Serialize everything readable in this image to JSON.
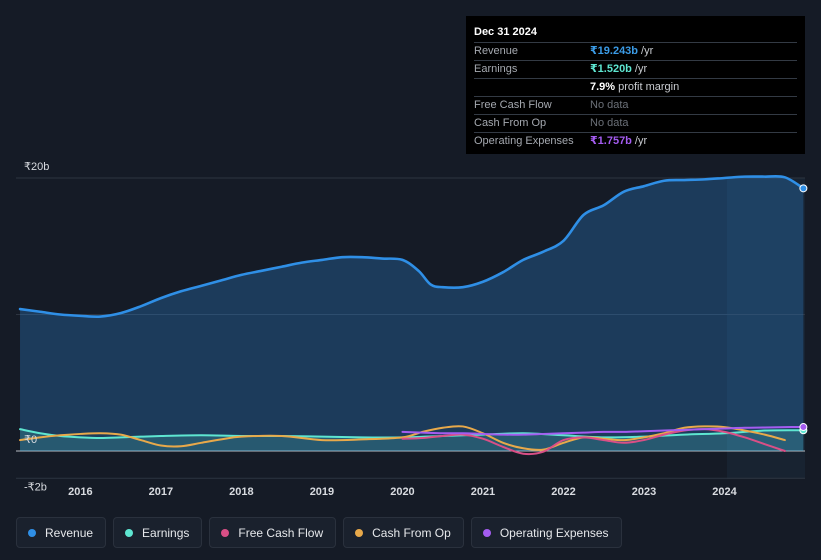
{
  "tooltip": {
    "date": "Dec 31 2024",
    "rows": [
      {
        "label": "Revenue",
        "value": "₹19.243b",
        "unit": "/yr",
        "color": "#3b9be6"
      },
      {
        "label": "Earnings",
        "value": "₹1.520b",
        "unit": "/yr",
        "color": "#5ee6d1"
      },
      {
        "label": "",
        "value": "7.9%",
        "unit": "profit margin",
        "color": "#ffffff"
      },
      {
        "label": "Free Cash Flow",
        "value": "No data",
        "unit": "",
        "color": "#6b7078"
      },
      {
        "label": "Cash From Op",
        "value": "No data",
        "unit": "",
        "color": "#6b7078"
      },
      {
        "label": "Operating Expenses",
        "value": "₹1.757b",
        "unit": "/yr",
        "color": "#a45cf0"
      }
    ]
  },
  "legend": [
    {
      "label": "Revenue",
      "color": "#2f8fe6"
    },
    {
      "label": "Earnings",
      "color": "#5ee6d1"
    },
    {
      "label": "Free Cash Flow",
      "color": "#d94f86"
    },
    {
      "label": "Cash From Op",
      "color": "#e8a94a"
    },
    {
      "label": "Operating Expenses",
      "color": "#a45cf0"
    }
  ],
  "chart_data": {
    "type": "line",
    "title": "",
    "xlabel": "",
    "ylabel": "",
    "y_tick_labels": [
      {
        "value": 20,
        "label": "₹20b"
      },
      {
        "value": 0,
        "label": "₹0"
      },
      {
        "value": -2,
        "label": "-₹2b"
      }
    ],
    "ylim": [
      -2,
      20
    ],
    "xlim": [
      2015.2,
      2025.0
    ],
    "x_ticks": [
      2016,
      2017,
      2018,
      2019,
      2020,
      2021,
      2022,
      2023,
      2024
    ],
    "forecast_start": 2024.0,
    "series": [
      {
        "name": "Revenue",
        "color": "#2f8fe6",
        "area": true,
        "x": [
          2015.25,
          2015.5,
          2015.75,
          2016.0,
          2016.25,
          2016.5,
          2016.75,
          2017.0,
          2017.25,
          2017.5,
          2017.75,
          2018.0,
          2018.25,
          2018.5,
          2018.75,
          2019.0,
          2019.25,
          2019.5,
          2019.75,
          2020.0,
          2020.2,
          2020.35,
          2020.5,
          2020.75,
          2021.0,
          2021.25,
          2021.5,
          2021.75,
          2022.0,
          2022.25,
          2022.5,
          2022.75,
          2023.0,
          2023.25,
          2023.5,
          2023.75,
          2024.0,
          2024.25,
          2024.5,
          2024.75,
          2024.98
        ],
        "values": [
          10.4,
          10.2,
          10.0,
          9.9,
          9.85,
          10.1,
          10.6,
          11.2,
          11.7,
          12.1,
          12.5,
          12.9,
          13.2,
          13.5,
          13.8,
          14.0,
          14.2,
          14.2,
          14.1,
          14.0,
          13.2,
          12.2,
          12.0,
          12.0,
          12.4,
          13.1,
          14.0,
          14.6,
          15.4,
          17.3,
          18.0,
          19.0,
          19.4,
          19.8,
          19.85,
          19.9,
          20.0,
          20.1,
          20.1,
          20.05,
          19.243
        ]
      },
      {
        "name": "Earnings",
        "color": "#5ee6d1",
        "area": true,
        "x": [
          2015.25,
          2015.5,
          2015.75,
          2016.0,
          2016.25,
          2016.5,
          2016.75,
          2017.0,
          2017.5,
          2018.0,
          2018.5,
          2019.0,
          2019.5,
          2020.0,
          2020.5,
          2021.0,
          2021.5,
          2022.0,
          2022.5,
          2023.0,
          2023.5,
          2024.0,
          2024.5,
          2024.98
        ],
        "values": [
          1.6,
          1.3,
          1.1,
          1.0,
          0.95,
          1.0,
          1.05,
          1.1,
          1.15,
          1.1,
          1.1,
          1.05,
          1.0,
          1.0,
          1.1,
          1.2,
          1.3,
          1.15,
          1.0,
          1.05,
          1.2,
          1.3,
          1.5,
          1.52
        ]
      },
      {
        "name": "Free Cash Flow",
        "color": "#d94f86",
        "area": false,
        "x": [
          2020.0,
          2020.25,
          2020.5,
          2020.75,
          2021.0,
          2021.25,
          2021.5,
          2021.75,
          2022.0,
          2022.25,
          2022.5,
          2022.75,
          2023.0,
          2023.25,
          2023.5,
          2023.75,
          2024.0,
          2024.25,
          2024.5,
          2024.75
        ],
        "values": [
          0.9,
          0.95,
          1.1,
          1.2,
          0.9,
          0.3,
          -0.2,
          -0.05,
          0.8,
          1.0,
          0.8,
          0.6,
          0.8,
          1.2,
          1.5,
          1.6,
          1.4,
          1.0,
          0.5,
          0.0
        ]
      },
      {
        "name": "Cash From Op",
        "color": "#e8a94a",
        "area": false,
        "x": [
          2015.25,
          2015.5,
          2015.75,
          2016.0,
          2016.25,
          2016.5,
          2016.75,
          2017.0,
          2017.25,
          2017.5,
          2017.75,
          2018.0,
          2018.5,
          2019.0,
          2019.5,
          2020.0,
          2020.25,
          2020.5,
          2020.75,
          2021.0,
          2021.25,
          2021.5,
          2021.75,
          2022.0,
          2022.25,
          2022.5,
          2022.75,
          2023.0,
          2023.25,
          2023.5,
          2023.75,
          2024.0,
          2024.25,
          2024.5,
          2024.75
        ],
        "values": [
          0.8,
          1.0,
          1.15,
          1.25,
          1.3,
          1.2,
          0.8,
          0.4,
          0.35,
          0.6,
          0.85,
          1.05,
          1.1,
          0.8,
          0.85,
          1.0,
          1.4,
          1.7,
          1.8,
          1.3,
          0.6,
          0.2,
          0.1,
          0.6,
          1.0,
          0.9,
          0.8,
          1.0,
          1.3,
          1.7,
          1.8,
          1.75,
          1.5,
          1.2,
          0.8
        ]
      },
      {
        "name": "Operating Expenses",
        "color": "#a45cf0",
        "area": false,
        "x": [
          2020.0,
          2020.25,
          2020.5,
          2020.75,
          2021.0,
          2021.25,
          2021.5,
          2021.75,
          2022.0,
          2022.25,
          2022.5,
          2022.75,
          2023.0,
          2023.25,
          2023.5,
          2023.75,
          2024.0,
          2024.25,
          2024.5,
          2024.75,
          2024.98
        ],
        "values": [
          1.4,
          1.35,
          1.3,
          1.3,
          1.25,
          1.2,
          1.2,
          1.25,
          1.3,
          1.35,
          1.4,
          1.4,
          1.45,
          1.5,
          1.55,
          1.6,
          1.65,
          1.7,
          1.72,
          1.75,
          1.757
        ]
      }
    ]
  }
}
